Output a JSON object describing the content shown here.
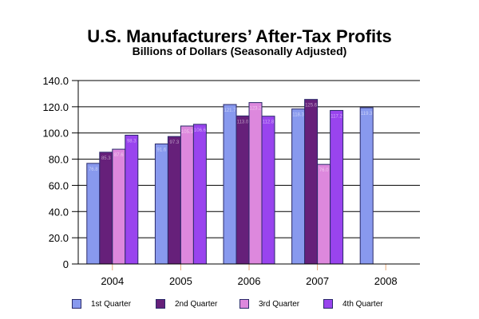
{
  "chart_data": {
    "type": "bar",
    "title": "U.S. Manufacturers’ After-Tax Profits",
    "subtitle": "Billions of Dollars (Seasonally Adjusted)",
    "xlabel": "",
    "ylabel": "",
    "ylim": [
      0,
      140
    ],
    "yticks": [
      "0",
      "20.0",
      "40.0",
      "60.0",
      "80.0",
      "100.0",
      "120.0",
      "140.0"
    ],
    "ytick_values": [
      0,
      20,
      40,
      60,
      80,
      100,
      120,
      140
    ],
    "grid": true,
    "legend_position": "bottom",
    "categories": [
      "2004",
      "2005",
      "2006",
      "2007",
      "2008"
    ],
    "series": [
      {
        "name": "1st Quarter",
        "color": "#8899ee",
        "values": [
          76.8,
          91.6,
          121.7,
          118.3,
          119.3
        ]
      },
      {
        "name": "2nd Quarter",
        "color": "#66207a",
        "values": [
          85.3,
          97.3,
          113.0,
          125.6,
          null
        ]
      },
      {
        "name": "3rd Quarter",
        "color": "#dd88dd",
        "values": [
          87.6,
          105.3,
          123.2,
          76.0,
          null
        ]
      },
      {
        "name": "4th Quarter",
        "color": "#9944ee",
        "values": [
          98.3,
          106.6,
          112.8,
          117.2,
          null
        ]
      }
    ]
  }
}
